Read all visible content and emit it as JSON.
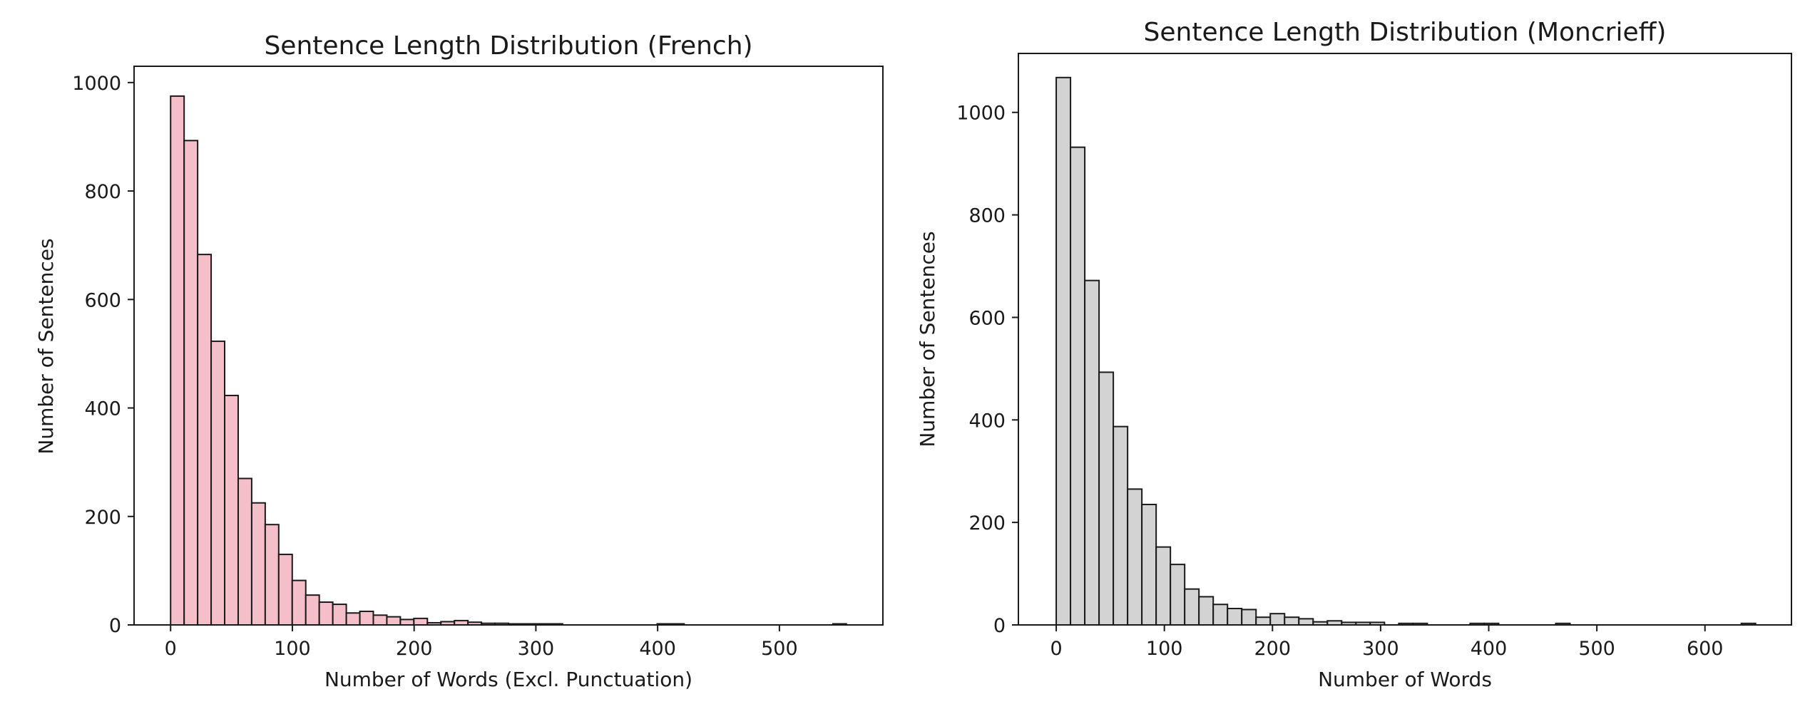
{
  "chart_data": [
    {
      "type": "bar",
      "title": "Sentence Length Distribution (French)",
      "xlabel": "Number of Words (Excl. Punctuation)",
      "ylabel": "Number of Sentences",
      "bin_width": 11.1,
      "bin_starts": [
        0,
        11.1,
        22.2,
        33.3,
        44.4,
        55.5,
        66.6,
        77.7,
        88.8,
        99.9,
        111,
        122.1,
        133.2,
        144.3,
        155.4,
        166.5,
        177.6,
        188.7,
        199.8,
        210.9,
        222,
        233.1,
        244.2,
        255.3,
        266.4,
        277.5,
        288.6,
        299.7,
        310.8,
        399.6,
        410.7,
        543.9
      ],
      "values": [
        975,
        893,
        683,
        523,
        423,
        270,
        225,
        185,
        130,
        82,
        55,
        42,
        38,
        22,
        25,
        18,
        15,
        10,
        12,
        4,
        6,
        8,
        5,
        3,
        3,
        2,
        2,
        2,
        2,
        2,
        2,
        2
      ],
      "xlim": [
        -30,
        585
      ],
      "ylim": [
        0,
        1030
      ],
      "xticks": [
        0,
        100,
        200,
        300,
        400,
        500
      ],
      "yticks": [
        0,
        200,
        400,
        600,
        800,
        1000
      ],
      "bar_color": "#f4bfc9",
      "edge_color": "#1a1a1a",
      "grid": false
    },
    {
      "type": "bar",
      "title": "Sentence Length Distribution (Moncrieff)",
      "xlabel": "Number of Words",
      "ylabel": "Number of Sentences",
      "bin_width": 13.2,
      "bin_starts": [
        0,
        13.2,
        26.4,
        39.6,
        52.8,
        66,
        79.2,
        92.4,
        105.6,
        118.8,
        132,
        145.2,
        158.4,
        171.6,
        184.8,
        198,
        211.2,
        224.4,
        237.6,
        250.8,
        264,
        277.2,
        290.4,
        316.8,
        330,
        382.8,
        396,
        462,
        633.6
      ],
      "values": [
        1068,
        932,
        672,
        493,
        387,
        265,
        235,
        152,
        118,
        70,
        55,
        40,
        32,
        30,
        15,
        22,
        15,
        12,
        6,
        8,
        5,
        5,
        5,
        3,
        3,
        3,
        3,
        3,
        3
      ],
      "xlim": [
        -35,
        680
      ],
      "ylim": [
        0,
        1115
      ],
      "xticks": [
        0,
        100,
        200,
        300,
        400,
        500,
        600
      ],
      "yticks": [
        0,
        200,
        400,
        600,
        800,
        1000
      ],
      "bar_color": "#d3d3d3",
      "edge_color": "#1a1a1a",
      "grid": false
    }
  ]
}
